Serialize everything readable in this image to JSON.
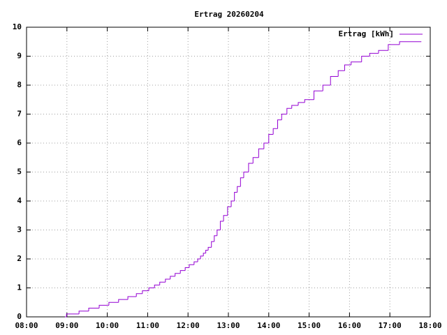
{
  "chart_data": {
    "type": "step",
    "title": "Ertrag 20260204",
    "series": [
      {
        "name": "Ertrag [kWh]",
        "color": "#9400d3",
        "x": [
          8.95,
          8.99,
          9.3,
          9.54,
          9.8,
          10.04,
          10.28,
          10.51,
          10.72,
          10.87,
          11.03,
          11.17,
          11.3,
          11.44,
          11.56,
          11.68,
          11.81,
          11.93,
          12.03,
          12.15,
          12.24,
          12.31,
          12.38,
          12.44,
          12.5,
          12.58,
          12.65,
          12.72,
          12.8,
          12.88,
          12.98,
          13.07,
          13.15,
          13.22,
          13.3,
          13.38,
          13.5,
          13.61,
          13.75,
          13.88,
          14.0,
          14.11,
          14.22,
          14.32,
          14.45,
          14.57,
          14.73,
          14.89,
          15.12,
          15.34,
          15.53,
          15.72,
          15.88,
          16.04,
          16.3,
          16.5,
          16.72,
          16.96,
          17.24,
          17.78
        ],
        "values": [
          0,
          0.1,
          0.2,
          0.3,
          0.4,
          0.5,
          0.6,
          0.7,
          0.8,
          0.9,
          1.0,
          1.1,
          1.2,
          1.3,
          1.4,
          1.5,
          1.6,
          1.7,
          1.8,
          1.9,
          2.0,
          2.1,
          2.2,
          2.3,
          2.4,
          2.6,
          2.8,
          3.0,
          3.3,
          3.5,
          3.8,
          4.0,
          4.3,
          4.5,
          4.8,
          5.0,
          5.3,
          5.5,
          5.8,
          6.0,
          6.3,
          6.5,
          6.8,
          7.0,
          7.2,
          7.3,
          7.4,
          7.5,
          7.8,
          8.0,
          8.3,
          8.5,
          8.7,
          8.8,
          9.0,
          9.1,
          9.2,
          9.4,
          9.5,
          9.5
        ]
      }
    ],
    "xlim": [
      8,
      18
    ],
    "xticks": [
      {
        "value": 8,
        "label": "08:00"
      },
      {
        "value": 9,
        "label": "09:00"
      },
      {
        "value": 10,
        "label": "10:00"
      },
      {
        "value": 11,
        "label": "11:00"
      },
      {
        "value": 12,
        "label": "12:00"
      },
      {
        "value": 13,
        "label": "13:00"
      },
      {
        "value": 14,
        "label": "14:00"
      },
      {
        "value": 15,
        "label": "15:00"
      },
      {
        "value": 16,
        "label": "16:00"
      },
      {
        "value": 17,
        "label": "17:00"
      },
      {
        "value": 18,
        "label": "18:00"
      }
    ],
    "ylim": [
      0,
      10
    ],
    "yticks": [
      0,
      1,
      2,
      3,
      4,
      5,
      6,
      7,
      8,
      9,
      10
    ],
    "grid": true,
    "legend": "top-right"
  }
}
